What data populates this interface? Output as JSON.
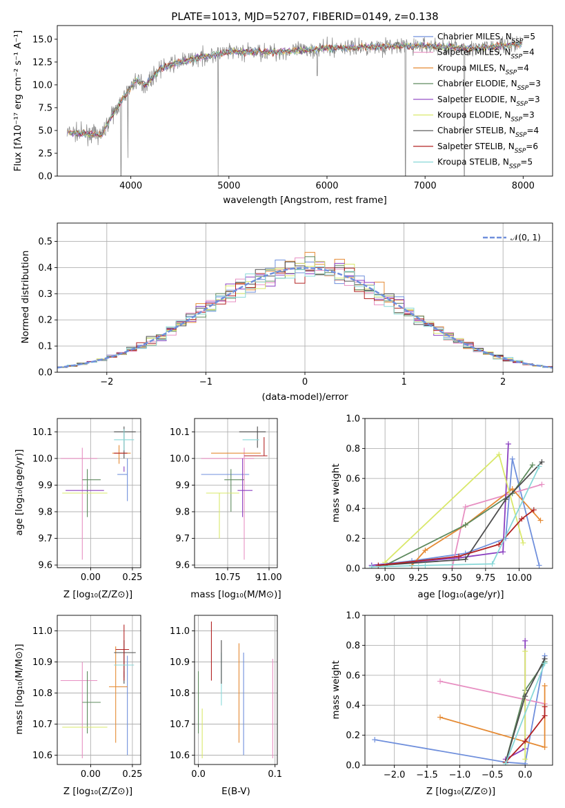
{
  "colors": {
    "C1": "#6f8fdc",
    "C2": "#e78fc2",
    "C3": "#e58a33",
    "C4": "#5e8a5e",
    "C5": "#8a3ec0",
    "C6": "#d9e86a",
    "C7": "#4d4d4d",
    "C8": "#b22222",
    "C9": "#88d8d8"
  },
  "legend_entries": [
    "Chabrier MILES",
    "Salpeter MILES",
    "Kroupa MILES",
    "Chabrier ELODIE",
    "Salpeter ELODIE",
    "Kroupa ELODIE",
    "Chabrier STELIB",
    "Salpeter STELIB",
    "Kroupa STELIB"
  ],
  "legend_nssp": [
    5,
    4,
    4,
    3,
    3,
    3,
    4,
    6,
    5
  ],
  "chart_data": [
    {
      "id": "spectrum",
      "type": "line",
      "title": "PLATE=1013, MJD=52707, FIBERID=0149, z=0.138",
      "xlabel": "wavelength [Angstrom, rest frame]",
      "ylabel": "Flux [fλ10⁻¹⁷ erg cm⁻² s⁻¹ A⁻¹]",
      "xlim": [
        3250,
        8300
      ],
      "ylim": [
        0,
        16.5
      ],
      "xticks": [
        4000,
        5000,
        6000,
        7000,
        8000
      ],
      "yticks": [
        0.0,
        2.5,
        5.0,
        7.5,
        10.0,
        12.5,
        15.0
      ],
      "continuum": [
        [
          3350,
          4.8
        ],
        [
          3700,
          4.5
        ],
        [
          3800,
          6.5
        ],
        [
          3950,
          9.0
        ],
        [
          4050,
          10.5
        ],
        [
          4150,
          10.0
        ],
        [
          4300,
          11.8
        ],
        [
          4600,
          12.8
        ],
        [
          5000,
          13.6
        ],
        [
          5500,
          13.6
        ],
        [
          6000,
          14.0
        ],
        [
          6500,
          14.2
        ],
        [
          7000,
          14.3
        ],
        [
          7500,
          14.0
        ],
        [
          8000,
          14.5
        ]
      ],
      "dropouts": [
        [
          3900,
          0.0
        ],
        [
          3970,
          2.0
        ],
        [
          4890,
          0.0
        ],
        [
          5900,
          11.0
        ],
        [
          6800,
          0.0
        ],
        [
          7400,
          0.0
        ]
      ]
    },
    {
      "id": "residuals",
      "type": "line",
      "xlabel": "(data-model)/error",
      "ylabel": "Normed distribution",
      "xlim": [
        -2.5,
        2.5
      ],
      "ylim": [
        0,
        0.57
      ],
      "xticks": [
        -2,
        -1,
        0,
        1,
        2
      ],
      "yticks": [
        0.0,
        0.1,
        0.2,
        0.3,
        0.4,
        0.5
      ],
      "reference_label": "𝒩(0, 1)",
      "bin_width": 0.1
    },
    {
      "id": "age_vs_Z",
      "type": "scatter",
      "xlabel": "Z [log₁₀(Z/Z⊙)]",
      "ylabel": "age  [log₁₀(age/yr)]",
      "xlim": [
        -0.2,
        0.3
      ],
      "ylim": [
        9.59,
        10.15
      ],
      "xticks": [
        0.0,
        0.25
      ],
      "yticks": [
        9.6,
        9.7,
        9.8,
        9.9,
        10.0,
        10.1
      ],
      "points": [
        {
          "x": 0.22,
          "y": 9.94,
          "xerr": [
            0.06,
            0.0
          ],
          "yerr": [
            0.1,
            0.06
          ],
          "c": "C1"
        },
        {
          "x": -0.05,
          "y": 10.0,
          "xerr": [
            0.13,
            0.09
          ],
          "yerr": [
            0.38,
            0.04
          ],
          "c": "C2"
        },
        {
          "x": 0.17,
          "y": 10.02,
          "xerr": [
            0.04,
            0.07
          ],
          "yerr": [
            0.04,
            0.03
          ],
          "c": "C3"
        },
        {
          "x": -0.02,
          "y": 9.92,
          "xerr": [
            0.03,
            0.08
          ],
          "yerr": [
            0.14,
            0.04
          ],
          "c": "C4"
        },
        {
          "x": 0.2,
          "y": 9.95,
          "xerr": [
            0.0,
            0.0
          ],
          "yerr": [
            0.0,
            0.02
          ],
          "c": "C5"
        },
        {
          "x": -0.02,
          "y": 9.87,
          "xerr": [
            0.15,
            0.12
          ],
          "yerr": [
            0.0,
            0.0
          ],
          "c": "C6"
        },
        {
          "x": 0.2,
          "y": 10.1,
          "xerr": [
            0.06,
            0.07
          ],
          "yerr": [
            0.1,
            0.02
          ],
          "c": "C7"
        },
        {
          "x": 0.14,
          "y": 10.02,
          "xerr": [
            0.0,
            0.08
          ],
          "yerr": [
            0.0,
            0.0
          ],
          "c": "C8"
        },
        {
          "x": 0.2,
          "y": 10.07,
          "xerr": [
            0.06,
            0.06
          ],
          "yerr": [
            0.04,
            0.04
          ],
          "c": "C9"
        },
        {
          "x": -0.05,
          "y": 9.88,
          "xerr": [
            0.1,
            0.13
          ],
          "yerr": [
            0.0,
            0.0
          ],
          "c": "C5"
        }
      ]
    },
    {
      "id": "age_vs_mass",
      "type": "scatter",
      "xlabel": "mass [log₁₀(M/M⊙)]",
      "ylabel": "",
      "xlim": [
        10.55,
        11.05
      ],
      "ylim": [
        9.59,
        10.15
      ],
      "xticks": [
        10.75,
        11.0
      ],
      "yticks": [
        9.6,
        9.7,
        9.8,
        9.9,
        10.0,
        10.1
      ],
      "points": [
        {
          "x": 10.75,
          "y": 9.94,
          "xerr": [
            0.16,
            0.13
          ],
          "yerr": [
            0.0,
            0.0
          ],
          "c": "C1"
        },
        {
          "x": 10.85,
          "y": 10.0,
          "xerr": [
            0.26,
            0.06
          ],
          "yerr": [
            0.38,
            0.04
          ],
          "c": "C2"
        },
        {
          "x": 10.82,
          "y": 10.02,
          "xerr": [
            0.17,
            0.13
          ],
          "yerr": [
            0.0,
            0.0
          ],
          "c": "C3"
        },
        {
          "x": 10.77,
          "y": 9.92,
          "xerr": [
            0.04,
            0.08
          ],
          "yerr": [
            0.12,
            0.04
          ],
          "c": "C4"
        },
        {
          "x": 10.84,
          "y": 9.88,
          "xerr": [
            0.03,
            0.06
          ],
          "yerr": [
            0.1,
            0.12
          ],
          "c": "C5"
        },
        {
          "x": 10.7,
          "y": 9.87,
          "xerr": [
            0.08,
            0.12
          ],
          "yerr": [
            0.17,
            0.0
          ],
          "c": "C6"
        },
        {
          "x": 10.93,
          "y": 10.1,
          "xerr": [
            0.11,
            0.05
          ],
          "yerr": [
            0.06,
            0.02
          ],
          "c": "C7"
        },
        {
          "x": 10.97,
          "y": 10.01,
          "xerr": [
            0.12,
            0.02
          ],
          "yerr": [
            0.0,
            0.07
          ],
          "c": "C8"
        },
        {
          "x": 10.9,
          "y": 10.07,
          "xerr": [
            0.06,
            0.04
          ],
          "yerr": [
            0.0,
            0.0
          ],
          "c": "C9"
        }
      ]
    },
    {
      "id": "massweight_vs_age",
      "type": "line",
      "xlabel": "age  [log₁₀(age/yr)]",
      "ylabel": "mass weight",
      "xlim": [
        8.85,
        10.25
      ],
      "ylim": [
        0,
        1.0
      ],
      "xticks": [
        9.0,
        9.25,
        9.5,
        9.75,
        10.0
      ],
      "yticks": [
        0.0,
        0.2,
        0.4,
        0.6,
        0.8,
        1.0
      ],
      "series": [
        {
          "c": "C1",
          "x": [
            8.9,
            9.2,
            9.6,
            9.9,
            9.95,
            10.15
          ],
          "y": [
            0.02,
            0.05,
            0.1,
            0.2,
            0.73,
            0.02
          ]
        },
        {
          "c": "C2",
          "x": [
            9.5,
            9.6,
            10.17
          ],
          "y": [
            0.0,
            0.41,
            0.56
          ]
        },
        {
          "c": "C3",
          "x": [
            9.2,
            9.3,
            9.6,
            9.95,
            10.16
          ],
          "y": [
            0.02,
            0.12,
            0.29,
            0.53,
            0.32
          ]
        },
        {
          "c": "C4",
          "x": [
            9.0,
            9.6,
            9.95,
            10.1
          ],
          "y": [
            0.02,
            0.29,
            0.5,
            0.69
          ]
        },
        {
          "c": "C5",
          "x": [
            8.9,
            9.55,
            9.88,
            9.92
          ],
          "y": [
            0.02,
            0.07,
            0.11,
            0.83
          ]
        },
        {
          "c": "C6",
          "x": [
            9.0,
            9.85,
            10.03
          ],
          "y": [
            0.04,
            0.76,
            0.17
          ]
        },
        {
          "c": "C7",
          "x": [
            8.95,
            9.6,
            9.9,
            10.17
          ],
          "y": [
            0.02,
            0.06,
            0.46,
            0.71
          ]
        },
        {
          "c": "C8",
          "x": [
            8.95,
            9.55,
            9.85,
            10.02,
            10.11
          ],
          "y": [
            0.02,
            0.08,
            0.16,
            0.33,
            0.39
          ]
        },
        {
          "c": "C9",
          "x": [
            8.9,
            9.3,
            9.8,
            10.15
          ],
          "y": [
            0.01,
            0.02,
            0.03,
            0.68
          ]
        }
      ]
    },
    {
      "id": "mass_vs_Z",
      "type": "scatter",
      "xlabel": "Z [log₁₀(Z/Z⊙)]",
      "ylabel": "mass [log₁₀(M/M⊙)]",
      "xlim": [
        -0.2,
        0.3
      ],
      "ylim": [
        10.57,
        11.05
      ],
      "xticks": [
        0.0,
        0.25
      ],
      "yticks": [
        10.6,
        10.7,
        10.8,
        10.9,
        11.0
      ],
      "points": [
        {
          "x": 0.22,
          "y": 10.82,
          "xerr": [
            0.06,
            0.0
          ],
          "yerr": [
            0.22,
            0.1
          ],
          "c": "C1"
        },
        {
          "x": -0.05,
          "y": 10.84,
          "xerr": [
            0.13,
            0.09
          ],
          "yerr": [
            0.25,
            0.06
          ],
          "c": "C2"
        },
        {
          "x": 0.15,
          "y": 10.82,
          "xerr": [
            0.04,
            0.07
          ],
          "yerr": [
            0.18,
            0.13
          ],
          "c": "C3"
        },
        {
          "x": -0.02,
          "y": 10.77,
          "xerr": [
            0.03,
            0.08
          ],
          "yerr": [
            0.1,
            0.1
          ],
          "c": "C4"
        },
        {
          "x": 0.2,
          "y": 10.85,
          "xerr": [
            0.0,
            0.0
          ],
          "yerr": [
            0.0,
            0.02
          ],
          "c": "C5"
        },
        {
          "x": -0.02,
          "y": 10.69,
          "xerr": [
            0.15,
            0.12
          ],
          "yerr": [
            0.0,
            0.0
          ],
          "c": "C6"
        },
        {
          "x": 0.2,
          "y": 10.93,
          "xerr": [
            0.06,
            0.07
          ],
          "yerr": [
            0.1,
            0.04
          ],
          "c": "C7"
        },
        {
          "x": 0.2,
          "y": 10.94,
          "xerr": [
            0.05,
            0.03
          ],
          "yerr": [
            0.1,
            0.08
          ],
          "c": "C8"
        },
        {
          "x": 0.2,
          "y": 10.89,
          "xerr": [
            0.06,
            0.06
          ],
          "yerr": [
            0.0,
            0.0
          ],
          "c": "C9"
        }
      ]
    },
    {
      "id": "mass_vs_ebv",
      "type": "scatter",
      "xlabel": "E(B-V)",
      "ylabel": "",
      "xlim": [
        -0.005,
        0.103
      ],
      "ylim": [
        10.57,
        11.05
      ],
      "xticks": [
        0.0,
        0.1
      ],
      "yticks": [
        10.6,
        10.7,
        10.8,
        10.9,
        11.0
      ],
      "points": [
        {
          "x": 0.0,
          "y": 10.77,
          "xerr": [
            0,
            0
          ],
          "yerr": [
            0.1,
            0.1
          ],
          "c": "C4"
        },
        {
          "x": 0.005,
          "y": 10.69,
          "xerr": [
            0,
            0
          ],
          "yerr": [
            0.1,
            0.06
          ],
          "c": "C6"
        },
        {
          "x": 0.017,
          "y": 10.94,
          "xerr": [
            0,
            0
          ],
          "yerr": [
            0.1,
            0.09
          ],
          "c": "C8"
        },
        {
          "x": 0.03,
          "y": 10.89,
          "xerr": [
            0,
            0
          ],
          "yerr": [
            0.13,
            0.04
          ],
          "c": "C9"
        },
        {
          "x": 0.03,
          "y": 10.93,
          "xerr": [
            0,
            0
          ],
          "yerr": [
            0.1,
            0.04
          ],
          "c": "C7"
        },
        {
          "x": 0.053,
          "y": 10.82,
          "xerr": [
            0,
            0
          ],
          "yerr": [
            0.18,
            0.14
          ],
          "c": "C3"
        },
        {
          "x": 0.059,
          "y": 10.82,
          "xerr": [
            0,
            0
          ],
          "yerr": [
            0.22,
            0.11
          ],
          "c": "C1"
        },
        {
          "x": 0.097,
          "y": 10.84,
          "xerr": [
            0,
            0
          ],
          "yerr": [
            0.25,
            0.07
          ],
          "c": "C2"
        }
      ]
    },
    {
      "id": "massweight_vs_Z",
      "type": "line",
      "xlabel": "Z [log₁₀(Z/Z⊙)]",
      "ylabel": "mass weight",
      "xlim": [
        -2.45,
        0.42
      ],
      "ylim": [
        0,
        1.0
      ],
      "xticks": [
        -2.0,
        -1.5,
        -1.0,
        -0.5,
        0.0
      ],
      "yticks": [
        0.0,
        0.2,
        0.4,
        0.6,
        0.8,
        1.0
      ],
      "series": [
        {
          "c": "C1",
          "x": [
            -2.3,
            -0.3,
            0.0,
            0.3
          ],
          "y": [
            0.17,
            0.02,
            0.01,
            0.73
          ]
        },
        {
          "c": "C2",
          "x": [
            -1.3,
            0.3
          ],
          "y": [
            0.56,
            0.41
          ]
        },
        {
          "c": "C3",
          "x": [
            -1.3,
            0.3,
            0.3
          ],
          "y": [
            0.32,
            0.12,
            0.53
          ]
        },
        {
          "c": "C4",
          "x": [
            -0.3,
            0.0,
            0.3
          ],
          "y": [
            0.02,
            0.5,
            0.69
          ]
        },
        {
          "c": "C5",
          "x": [
            -0.3,
            0.0,
            0.0
          ],
          "y": [
            0.04,
            0.11,
            0.83
          ]
        },
        {
          "c": "C6",
          "x": [
            0.0,
            0.0
          ],
          "y": [
            0.04,
            0.76
          ]
        },
        {
          "c": "C7",
          "x": [
            -0.3,
            0.0,
            0.3
          ],
          "y": [
            0.02,
            0.46,
            0.71
          ]
        },
        {
          "c": "C8",
          "x": [
            -0.3,
            0.0,
            0.3,
            0.3
          ],
          "y": [
            0.02,
            0.16,
            0.33,
            0.39
          ]
        },
        {
          "c": "C9",
          "x": [
            -0.3,
            0.3
          ],
          "y": [
            0.01,
            0.68
          ]
        }
      ]
    }
  ]
}
